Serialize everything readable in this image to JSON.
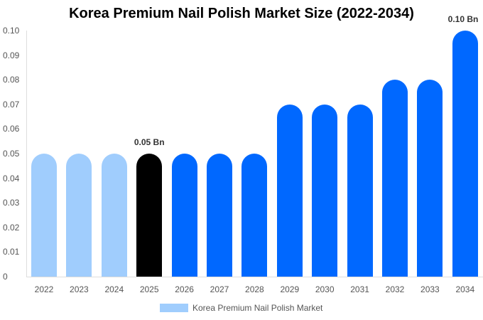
{
  "chart_data": {
    "type": "bar",
    "title": "Korea Premium Nail Polish Market Size (2022-2034)",
    "xlabel": "",
    "ylabel": "",
    "ylim": [
      0,
      0.1
    ],
    "yticks": [
      "0",
      "0.01",
      "0.02",
      "0.03",
      "0.04",
      "0.05",
      "0.06",
      "0.07",
      "0.08",
      "0.09",
      "0.10"
    ],
    "categories": [
      "2022",
      "2023",
      "2024",
      "2025",
      "2026",
      "2027",
      "2028",
      "2029",
      "2030",
      "2031",
      "2032",
      "2033",
      "2034"
    ],
    "series": [
      {
        "name": "Korea Premium Nail Polish Market",
        "values": [
          0.05,
          0.05,
          0.05,
          0.05,
          0.05,
          0.05,
          0.05,
          0.07,
          0.07,
          0.07,
          0.08,
          0.08,
          0.1
        ]
      }
    ],
    "bar_colors": [
      "#a0cdfd",
      "#a0cdfd",
      "#a0cdfd",
      "#000000",
      "#0068ff",
      "#0068ff",
      "#0068ff",
      "#0068ff",
      "#0068ff",
      "#0068ff",
      "#0068ff",
      "#0068ff",
      "#0068ff"
    ],
    "annotations": [
      {
        "category": "2025",
        "text": "0.05 Bn"
      },
      {
        "category": "2034",
        "text": "0.10 Bn"
      }
    ],
    "grid": false,
    "legend_position": "bottom"
  },
  "legend": {
    "label": "Korea Premium Nail Polish Market",
    "color": "#a0cdfd"
  }
}
